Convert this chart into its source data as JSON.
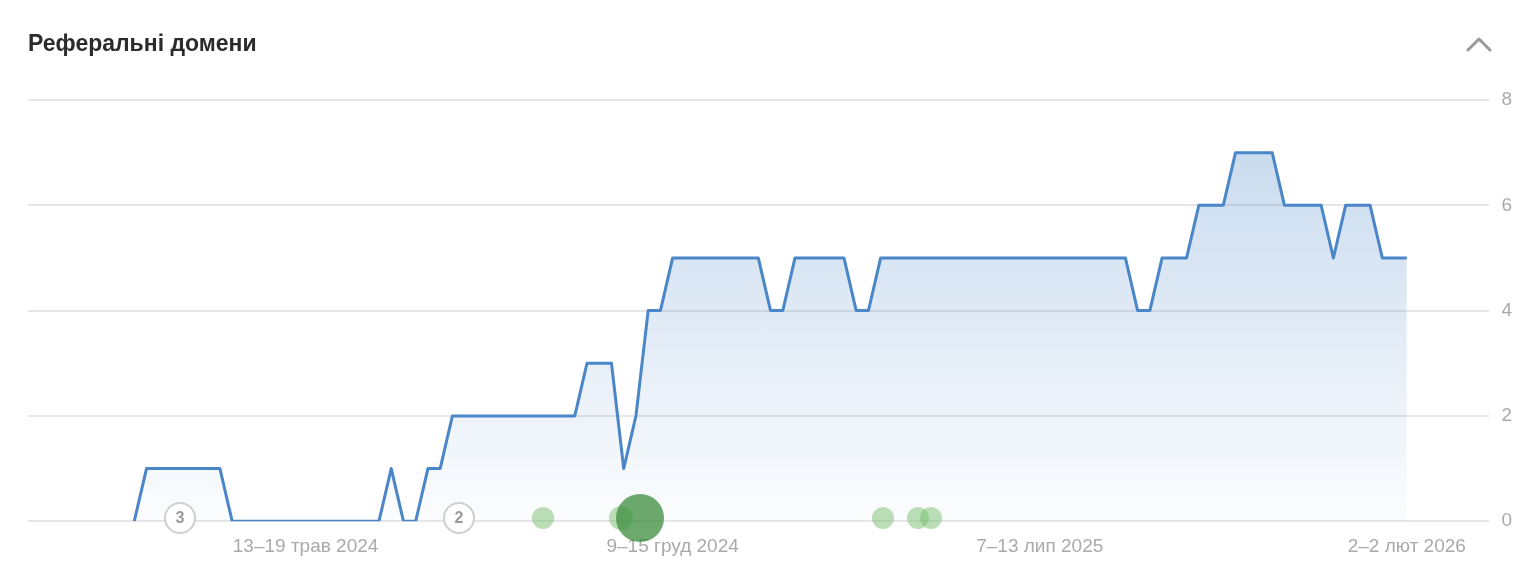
{
  "chart_data": {
    "type": "area",
    "title": "Реферальні домени",
    "categories": [
      null,
      null,
      null,
      null,
      null,
      null,
      null,
      null,
      null,
      null,
      null,
      null,
      null,
      null,
      "13–19 трав 2024",
      null,
      null,
      null,
      null,
      null,
      null,
      null,
      null,
      null,
      null,
      null,
      null,
      null,
      null,
      null,
      null,
      null,
      null,
      null,
      null,
      null,
      null,
      null,
      null,
      null,
      null,
      null,
      null,
      null,
      "9–15 груд 2024",
      null,
      null,
      null,
      null,
      null,
      null,
      null,
      null,
      null,
      null,
      null,
      null,
      null,
      null,
      null,
      null,
      null,
      null,
      null,
      null,
      null,
      null,
      null,
      null,
      null,
      null,
      null,
      null,
      null,
      "7–13 лип 2025",
      null,
      null,
      null,
      null,
      null,
      null,
      null,
      null,
      null,
      null,
      null,
      null,
      null,
      null,
      null,
      null,
      null,
      null,
      null,
      null,
      null,
      null,
      null,
      null,
      null,
      null,
      null,
      null,
      null,
      "2–2 лют 2026"
    ],
    "series": [
      {
        "color": "#4a86c8",
        "values": [
          0,
          1,
          1,
          1,
          1,
          1,
          1,
          1,
          0,
          0,
          0,
          0,
          0,
          0,
          0,
          0,
          0,
          0,
          0,
          0,
          0,
          1,
          0,
          0,
          1,
          1,
          2,
          2,
          2,
          2,
          2,
          2,
          2,
          2,
          2,
          2,
          2,
          3,
          3,
          3,
          1,
          2,
          4,
          4,
          5,
          5,
          5,
          5,
          5,
          5,
          5,
          5,
          4,
          4,
          5,
          5,
          5,
          5,
          5,
          4,
          4,
          5,
          5,
          5,
          5,
          5,
          5,
          5,
          5,
          5,
          5,
          5,
          5,
          5,
          5,
          5,
          5,
          5,
          5,
          5,
          5,
          5,
          4,
          4,
          5,
          5,
          5,
          6,
          6,
          6,
          7,
          7,
          7,
          7,
          6,
          6,
          6,
          6,
          5,
          6,
          6,
          6,
          5,
          5,
          5
        ]
      }
    ],
    "ylim": [
      0,
      8
    ],
    "yticks": [
      0,
      2,
      4,
      6,
      8
    ],
    "grid": "y",
    "legend": false,
    "marker": "none",
    "line_style": "solid",
    "annotations": [
      "3",
      "2"
    ]
  }
}
